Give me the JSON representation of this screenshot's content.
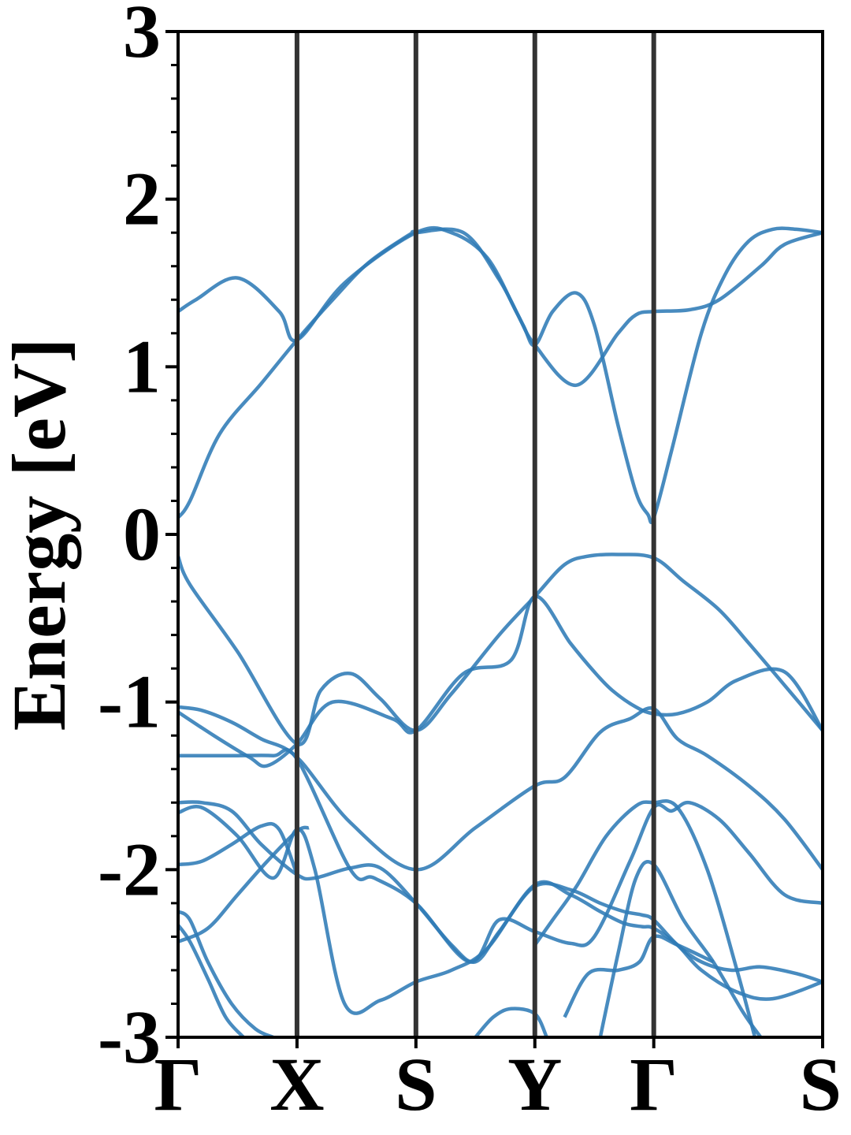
{
  "chart_data": {
    "type": "line",
    "title": "",
    "xlabel": "",
    "ylabel": "Energy [eV]",
    "ylim": [
      -3,
      3
    ],
    "yticks": [
      3,
      2,
      1,
      0,
      -1,
      -2,
      -3
    ],
    "ytick_labels": [
      "3",
      "2",
      "1",
      "0",
      "-1",
      "-2",
      "-3"
    ],
    "k_points": [
      {
        "label": "Γ",
        "x": 0.0
      },
      {
        "label": "X",
        "x": 1.0
      },
      {
        "label": "S",
        "x": 2.0
      },
      {
        "label": "Y",
        "x": 3.0
      },
      {
        "label": "Γ",
        "x": 4.0
      },
      {
        "label": "S",
        "x": 5.42
      }
    ],
    "xlim": [
      0,
      5.42
    ],
    "grid": false,
    "line_color": "#2f7bb6",
    "divider_color": "#333333",
    "series": [
      {
        "x": [
          0,
          0.15,
          0.5,
          0.85,
          1.0,
          1.4,
          2.0,
          2.3,
          2.6,
          2.85,
          3.0,
          3.35,
          3.7,
          3.85,
          4.0,
          4.3,
          4.55,
          4.9,
          5.1,
          5.42
        ],
        "y": [
          1.33,
          1.4,
          1.53,
          1.33,
          1.16,
          1.5,
          1.8,
          1.8,
          1.65,
          1.32,
          1.13,
          0.89,
          1.2,
          1.31,
          1.33,
          1.34,
          1.4,
          1.6,
          1.73,
          1.8
        ]
      },
      {
        "x": [
          0,
          0.1,
          0.35,
          0.7,
          1.0,
          1.3,
          1.6,
          1.95,
          2.0,
          2.4,
          2.7,
          2.9,
          3.0,
          3.15,
          3.35,
          3.5,
          3.7,
          3.85,
          3.95,
          4.0,
          4.15,
          4.4,
          4.6,
          4.8,
          5.0,
          5.2,
          5.42
        ],
        "y": [
          0.1,
          0.2,
          0.6,
          0.9,
          1.16,
          1.4,
          1.62,
          1.79,
          1.8,
          1.8,
          1.52,
          1.25,
          1.13,
          1.33,
          1.44,
          1.25,
          0.65,
          0.25,
          0.12,
          0.1,
          0.5,
          1.2,
          1.55,
          1.75,
          1.82,
          1.82,
          1.8
        ]
      },
      {
        "x": [
          0,
          0.1,
          0.5,
          1.0,
          1.2,
          1.45,
          1.7,
          2.0,
          2.3,
          2.7,
          3.0,
          3.25,
          3.45,
          3.7,
          4.0,
          4.25,
          4.55,
          4.8,
          5.1,
          5.42
        ],
        "y": [
          -0.13,
          -0.3,
          -0.7,
          -1.25,
          -0.93,
          -0.83,
          -0.98,
          -1.17,
          -0.95,
          -0.6,
          -0.37,
          -0.18,
          -0.13,
          -0.12,
          -0.14,
          -0.28,
          -0.45,
          -0.65,
          -0.9,
          -1.17
        ]
      },
      {
        "x": [
          0,
          0.2,
          0.45,
          0.7,
          1.0,
          1.45,
          2.0,
          2.5,
          3.0,
          3.25,
          3.55,
          3.8,
          4.0,
          4.2,
          4.45,
          4.8,
          5.1,
          5.42
        ],
        "y": [
          -1.03,
          -1.05,
          -1.12,
          -1.22,
          -1.33,
          -1.72,
          -2.0,
          -1.75,
          -1.5,
          -1.45,
          -1.18,
          -1.1,
          -1.04,
          -1.22,
          -1.32,
          -1.5,
          -1.7,
          -2.0
        ]
      },
      {
        "x": [
          0,
          0.3,
          0.6,
          0.75,
          1.0,
          1.3,
          1.8,
          2.0,
          2.4,
          2.8,
          3.0,
          3.3,
          3.5,
          3.65,
          3.85,
          4.0,
          4.2,
          4.45,
          4.7,
          5.1,
          5.42
        ],
        "y": [
          -1.06,
          -1.2,
          -1.33,
          -1.38,
          -1.25,
          -1.0,
          -1.1,
          -1.17,
          -0.83,
          -0.75,
          -0.37,
          -0.65,
          -0.82,
          -0.93,
          -1.03,
          -1.07,
          -1.07,
          -1.0,
          -0.87,
          -0.82,
          -1.17
        ]
      },
      {
        "x": [
          0,
          0.3,
          0.5,
          0.8,
          1.0,
          1.45,
          1.65,
          2.0,
          2.45,
          2.7,
          3.0,
          3.3,
          3.5,
          3.8,
          4.0,
          4.15,
          4.3,
          4.55,
          4.8,
          5.1,
          5.42
        ],
        "y": [
          -1.32,
          -1.32,
          -1.32,
          -1.32,
          -1.34,
          -2.0,
          -2.05,
          -2.2,
          -2.55,
          -2.3,
          -2.37,
          -2.44,
          -2.4,
          -1.95,
          -1.63,
          -1.65,
          -1.6,
          -1.7,
          -1.9,
          -2.15,
          -2.2
        ]
      },
      {
        "x": [
          0,
          0.2,
          0.45,
          0.7,
          1.0,
          1.15,
          1.45,
          1.7,
          2.0,
          2.3,
          2.5,
          2.7,
          3.0,
          3.3,
          3.55,
          3.75,
          3.9,
          4.0,
          4.2,
          4.4,
          4.65,
          4.9,
          5.2,
          5.42
        ],
        "y": [
          -1.6,
          -1.6,
          -1.65,
          -1.85,
          -2.03,
          -2.05,
          -1.99,
          -1.99,
          -2.2,
          -2.45,
          -2.55,
          -2.37,
          -2.1,
          -2.12,
          -2.2,
          -2.25,
          -2.27,
          -2.3,
          -2.45,
          -2.55,
          -2.6,
          -2.58,
          -2.62,
          -2.67
        ]
      },
      {
        "x": [
          0,
          0.2,
          0.5,
          0.8,
          1.0,
          1.15,
          1.4,
          1.7,
          2.0,
          2.3,
          2.6,
          3.0,
          3.3,
          3.55,
          3.75,
          3.9,
          4.0,
          4.2,
          4.4,
          4.7,
          5.0,
          5.42
        ],
        "y": [
          -1.66,
          -1.63,
          -1.8,
          -2.05,
          -1.76,
          -2.0,
          -2.8,
          -2.78,
          -2.67,
          -2.6,
          -2.47,
          -2.09,
          -2.15,
          -2.25,
          -2.32,
          -2.34,
          -2.35,
          -2.45,
          -2.6,
          -2.73,
          -2.77,
          -2.67
        ]
      },
      {
        "x": [
          0,
          0.2,
          0.45,
          0.7,
          0.85,
          1.0
        ],
        "y": [
          -1.97,
          -1.95,
          -1.85,
          -1.74,
          -1.76,
          -2.03
        ]
      },
      {
        "x": [
          0,
          0.25,
          0.5,
          0.75,
          1.0,
          1.1
        ],
        "y": [
          -2.43,
          -2.35,
          -2.15,
          -1.95,
          -1.77,
          -1.75
        ]
      },
      {
        "x": [
          0,
          0.1,
          0.25,
          0.45,
          0.65,
          0.8
        ],
        "y": [
          -2.25,
          -2.3,
          -2.55,
          -2.8,
          -2.95,
          -3.0
        ]
      },
      {
        "x": [
          0,
          0.1,
          0.25,
          0.4,
          0.55
        ],
        "y": [
          -2.33,
          -2.43,
          -2.65,
          -2.88,
          -3.0
        ]
      },
      {
        "x": [
          2.5,
          2.65,
          2.8,
          3.0,
          3.1
        ],
        "y": [
          -3.0,
          -2.88,
          -2.83,
          -2.86,
          -3.0
        ]
      },
      {
        "x": [
          3.0,
          3.15,
          3.35,
          3.6,
          3.85,
          4.0,
          4.2,
          4.45,
          4.7,
          4.85
        ],
        "y": [
          -2.45,
          -2.3,
          -2.1,
          -1.8,
          -1.62,
          -1.6,
          -1.63,
          -2.0,
          -2.6,
          -3.0
        ]
      },
      {
        "x": [
          3.55,
          3.7,
          3.85,
          4.0,
          4.25,
          4.5,
          4.75,
          4.9
        ],
        "y": [
          -3.0,
          -2.5,
          -2.05,
          -1.97,
          -2.3,
          -2.55,
          -2.85,
          -3.0
        ]
      },
      {
        "x": [
          3.25,
          3.45,
          3.7,
          3.88,
          4.0,
          4.2,
          4.5
        ],
        "y": [
          -2.88,
          -2.62,
          -2.6,
          -2.55,
          -2.4,
          -2.45,
          -2.55
        ]
      }
    ]
  }
}
